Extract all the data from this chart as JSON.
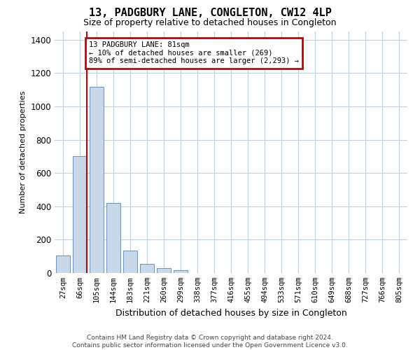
{
  "title": "13, PADGBURY LANE, CONGLETON, CW12 4LP",
  "subtitle": "Size of property relative to detached houses in Congleton",
  "xlabel": "Distribution of detached houses by size in Congleton",
  "ylabel": "Number of detached properties",
  "categories": [
    "27sqm",
    "66sqm",
    "105sqm",
    "144sqm",
    "183sqm",
    "221sqm",
    "260sqm",
    "299sqm",
    "338sqm",
    "377sqm",
    "416sqm",
    "455sqm",
    "494sqm",
    "533sqm",
    "571sqm",
    "610sqm",
    "649sqm",
    "688sqm",
    "727sqm",
    "766sqm",
    "805sqm"
  ],
  "values": [
    105,
    700,
    1120,
    420,
    135,
    55,
    30,
    15,
    0,
    0,
    0,
    0,
    0,
    0,
    0,
    0,
    0,
    0,
    0,
    0,
    0
  ],
  "bar_color": "#c8d8e8",
  "bar_edge_color": "#7090b8",
  "vline_color": "#cc0000",
  "vline_x": 1.4,
  "annotation_text": "13 PADGBURY LANE: 81sqm\n← 10% of detached houses are smaller (269)\n89% of semi-detached houses are larger (2,293) →",
  "annotation_box_color": "#cc0000",
  "ylim": [
    0,
    1450
  ],
  "yticks": [
    0,
    200,
    400,
    600,
    800,
    1000,
    1200,
    1400
  ],
  "background_color": "#ffffff",
  "grid_color": "#c0d0e0",
  "footer_line1": "Contains HM Land Registry data © Crown copyright and database right 2024.",
  "footer_line2": "Contains public sector information licensed under the Open Government Licence v3.0."
}
